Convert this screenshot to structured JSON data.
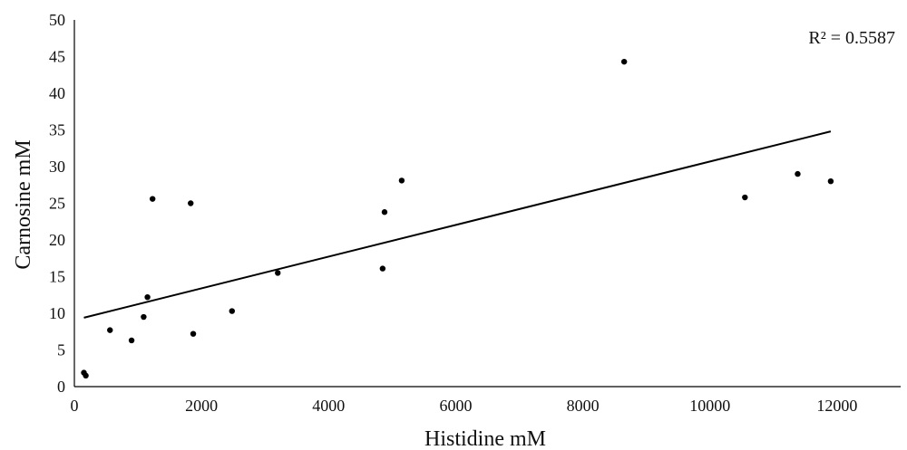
{
  "chart_data": {
    "type": "scatter",
    "xlabel": "Histidine mM",
    "ylabel": "Carnosine mM",
    "xlim": [
      0,
      13000
    ],
    "ylim": [
      0,
      50
    ],
    "x_ticks": [
      0,
      2000,
      4000,
      6000,
      8000,
      10000,
      12000
    ],
    "y_ticks": [
      0,
      5,
      10,
      15,
      20,
      25,
      30,
      35,
      40,
      45,
      50
    ],
    "grid": false,
    "legend": "none",
    "annotation": "R² = 0.5587",
    "colors": {
      "point": "#000000",
      "trendline": "#000000",
      "axis": "#000000"
    },
    "points": [
      {
        "x": 150,
        "y": 1.9
      },
      {
        "x": 180,
        "y": 1.5
      },
      {
        "x": 560,
        "y": 7.7
      },
      {
        "x": 900,
        "y": 6.3
      },
      {
        "x": 1090,
        "y": 9.5
      },
      {
        "x": 1150,
        "y": 12.2
      },
      {
        "x": 1230,
        "y": 25.6
      },
      {
        "x": 1830,
        "y": 25.0
      },
      {
        "x": 1870,
        "y": 7.2
      },
      {
        "x": 2480,
        "y": 10.3
      },
      {
        "x": 3200,
        "y": 15.5
      },
      {
        "x": 4850,
        "y": 16.1
      },
      {
        "x": 4880,
        "y": 23.8
      },
      {
        "x": 5150,
        "y": 28.1
      },
      {
        "x": 8650,
        "y": 44.3
      },
      {
        "x": 10550,
        "y": 25.8
      },
      {
        "x": 11380,
        "y": 29.0
      },
      {
        "x": 11900,
        "y": 28.0
      }
    ],
    "trendline": {
      "x_start": 150,
      "y_start": 9.4,
      "x_end": 11900,
      "y_end": 34.8
    }
  }
}
